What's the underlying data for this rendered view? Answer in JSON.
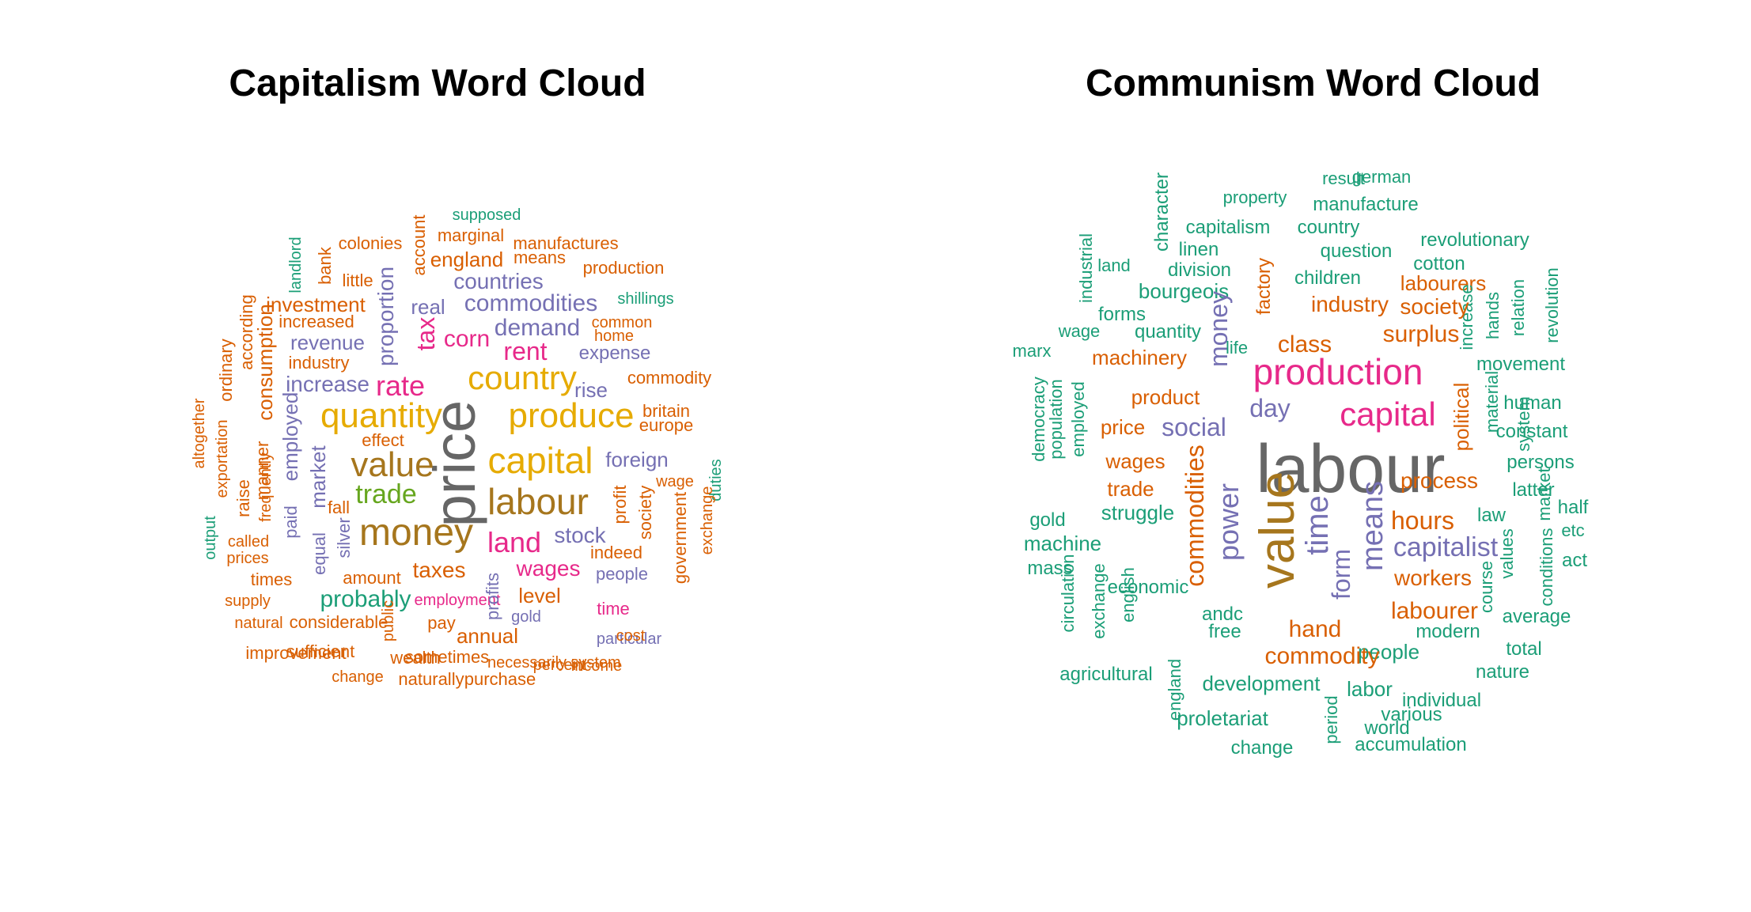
{
  "palette": {
    "teal": "#1b9e77",
    "orange": "#d95f02",
    "purple": "#7570b3",
    "pink": "#e7298a",
    "green": "#66a61e",
    "gold": "#e6ab02",
    "brown": "#a6761d",
    "gray": "#666666"
  },
  "panels": [
    {
      "title": "Capitalism Word Cloud",
      "words": [
        {
          "text": "supposed",
          "color": "teal"
        },
        {
          "text": "colonies",
          "color": "orange"
        },
        {
          "text": "marginal",
          "color": "orange"
        },
        {
          "text": "manufactures",
          "color": "orange"
        },
        {
          "text": "landlord",
          "color": "teal"
        },
        {
          "text": "bank",
          "color": "orange"
        },
        {
          "text": "account",
          "color": "orange"
        },
        {
          "text": "england",
          "color": "orange"
        },
        {
          "text": "means",
          "color": "orange"
        },
        {
          "text": "little",
          "color": "orange"
        },
        {
          "text": "countries",
          "color": "purple"
        },
        {
          "text": "production",
          "color": "orange"
        },
        {
          "text": "investment",
          "color": "orange"
        },
        {
          "text": "proportion",
          "color": "purple"
        },
        {
          "text": "real",
          "color": "purple"
        },
        {
          "text": "commodities",
          "color": "purple"
        },
        {
          "text": "shillings",
          "color": "teal"
        },
        {
          "text": "according",
          "color": "orange"
        },
        {
          "text": "increased",
          "color": "orange"
        },
        {
          "text": "tax",
          "color": "pink"
        },
        {
          "text": "demand",
          "color": "purple"
        },
        {
          "text": "common",
          "color": "orange"
        },
        {
          "text": "ordinary",
          "color": "orange"
        },
        {
          "text": "revenue",
          "color": "purple"
        },
        {
          "text": "corn",
          "color": "pink"
        },
        {
          "text": "home",
          "color": "orange"
        },
        {
          "text": "consumption",
          "color": "orange"
        },
        {
          "text": "rent",
          "color": "pink"
        },
        {
          "text": "expense",
          "color": "purple"
        },
        {
          "text": "industry",
          "color": "orange"
        },
        {
          "text": "country",
          "color": "gold"
        },
        {
          "text": "commodity",
          "color": "orange"
        },
        {
          "text": "increase",
          "color": "purple"
        },
        {
          "text": "rate",
          "color": "pink"
        },
        {
          "text": "rise",
          "color": "purple"
        },
        {
          "text": "employed",
          "color": "purple"
        },
        {
          "text": "quantity",
          "color": "gold"
        },
        {
          "text": "produce",
          "color": "gold"
        },
        {
          "text": "britain",
          "color": "orange"
        },
        {
          "text": "europe",
          "color": "orange"
        },
        {
          "text": "altogether",
          "color": "orange"
        },
        {
          "text": "exportation",
          "color": "orange"
        },
        {
          "text": "effect",
          "color": "orange"
        },
        {
          "text": "price",
          "color": "gray"
        },
        {
          "text": "market",
          "color": "purple"
        },
        {
          "text": "value",
          "color": "brown"
        },
        {
          "text": "capital",
          "color": "gold"
        },
        {
          "text": "foreign",
          "color": "purple"
        },
        {
          "text": "frequently",
          "color": "orange"
        },
        {
          "text": "raise",
          "color": "orange"
        },
        {
          "text": "manner",
          "color": "orange"
        },
        {
          "text": "trade",
          "color": "green"
        },
        {
          "text": "wage",
          "color": "orange"
        },
        {
          "text": "duties",
          "color": "teal"
        },
        {
          "text": "paid",
          "color": "purple"
        },
        {
          "text": "fall",
          "color": "orange"
        },
        {
          "text": "labour",
          "color": "brown"
        },
        {
          "text": "profit",
          "color": "orange"
        },
        {
          "text": "society",
          "color": "orange"
        },
        {
          "text": "government",
          "color": "orange"
        },
        {
          "text": "output",
          "color": "teal"
        },
        {
          "text": "equal",
          "color": "purple"
        },
        {
          "text": "silver",
          "color": "purple"
        },
        {
          "text": "money",
          "color": "brown"
        },
        {
          "text": "stock",
          "color": "purple"
        },
        {
          "text": "called",
          "color": "orange"
        },
        {
          "text": "land",
          "color": "pink"
        },
        {
          "text": "exchange",
          "color": "orange"
        },
        {
          "text": "prices",
          "color": "orange"
        },
        {
          "text": "indeed",
          "color": "orange"
        },
        {
          "text": "times",
          "color": "orange"
        },
        {
          "text": "amount",
          "color": "orange"
        },
        {
          "text": "taxes",
          "color": "orange"
        },
        {
          "text": "wages",
          "color": "pink"
        },
        {
          "text": "people",
          "color": "purple"
        },
        {
          "text": "supply",
          "color": "orange"
        },
        {
          "text": "probably",
          "color": "teal"
        },
        {
          "text": "employment",
          "color": "pink"
        },
        {
          "text": "level",
          "color": "orange"
        },
        {
          "text": "profits",
          "color": "purple"
        },
        {
          "text": "time",
          "color": "pink"
        },
        {
          "text": "natural",
          "color": "orange"
        },
        {
          "text": "considerable",
          "color": "orange"
        },
        {
          "text": "public",
          "color": "orange"
        },
        {
          "text": "pay",
          "color": "orange"
        },
        {
          "text": "gold",
          "color": "purple"
        },
        {
          "text": "annual",
          "color": "orange"
        },
        {
          "text": "particular",
          "color": "purple"
        },
        {
          "text": "sufficient",
          "color": "orange"
        },
        {
          "text": "sometimes",
          "color": "orange"
        },
        {
          "text": "necessarily",
          "color": "orange"
        },
        {
          "text": "cost",
          "color": "orange"
        },
        {
          "text": "improvement",
          "color": "orange"
        },
        {
          "text": "wealth",
          "color": "orange"
        },
        {
          "text": "percent",
          "color": "orange"
        },
        {
          "text": "income",
          "color": "orange"
        },
        {
          "text": "change",
          "color": "orange"
        },
        {
          "text": "naturally",
          "color": "orange"
        },
        {
          "text": "purchase",
          "color": "orange"
        },
        {
          "text": "system",
          "color": "orange"
        }
      ]
    },
    {
      "title": "Communism Word Cloud",
      "words": [
        {
          "text": "result",
          "color": "teal"
        },
        {
          "text": "german",
          "color": "teal"
        },
        {
          "text": "character",
          "color": "teal"
        },
        {
          "text": "property",
          "color": "teal"
        },
        {
          "text": "manufacture",
          "color": "teal"
        },
        {
          "text": "capitalism",
          "color": "teal"
        },
        {
          "text": "country",
          "color": "teal"
        },
        {
          "text": "industrial",
          "color": "teal"
        },
        {
          "text": "linen",
          "color": "teal"
        },
        {
          "text": "question",
          "color": "teal"
        },
        {
          "text": "revolutionary",
          "color": "teal"
        },
        {
          "text": "land",
          "color": "teal"
        },
        {
          "text": "division",
          "color": "teal"
        },
        {
          "text": "factory",
          "color": "orange"
        },
        {
          "text": "cotton",
          "color": "teal"
        },
        {
          "text": "children",
          "color": "teal"
        },
        {
          "text": "labourers",
          "color": "orange"
        },
        {
          "text": "revolution",
          "color": "teal"
        },
        {
          "text": "relation",
          "color": "teal"
        },
        {
          "text": "bourgeois",
          "color": "teal"
        },
        {
          "text": "hands",
          "color": "teal"
        },
        {
          "text": "increase",
          "color": "teal"
        },
        {
          "text": "industry",
          "color": "orange"
        },
        {
          "text": "society",
          "color": "orange"
        },
        {
          "text": "forms",
          "color": "teal"
        },
        {
          "text": "wage",
          "color": "teal"
        },
        {
          "text": "quantity",
          "color": "teal"
        },
        {
          "text": "money",
          "color": "purple"
        },
        {
          "text": "surplus",
          "color": "orange"
        },
        {
          "text": "life",
          "color": "teal"
        },
        {
          "text": "class",
          "color": "orange"
        },
        {
          "text": "marx",
          "color": "teal"
        },
        {
          "text": "machinery",
          "color": "orange"
        },
        {
          "text": "movement",
          "color": "teal"
        },
        {
          "text": "production",
          "color": "pink"
        },
        {
          "text": "democracy",
          "color": "teal"
        },
        {
          "text": "product",
          "color": "orange"
        },
        {
          "text": "political",
          "color": "orange"
        },
        {
          "text": "material",
          "color": "teal"
        },
        {
          "text": "human",
          "color": "teal"
        },
        {
          "text": "population",
          "color": "teal"
        },
        {
          "text": "employed",
          "color": "teal"
        },
        {
          "text": "day",
          "color": "purple"
        },
        {
          "text": "capital",
          "color": "pink"
        },
        {
          "text": "system",
          "color": "teal"
        },
        {
          "text": "constant",
          "color": "teal"
        },
        {
          "text": "price",
          "color": "orange"
        },
        {
          "text": "social",
          "color": "purple"
        },
        {
          "text": "persons",
          "color": "teal"
        },
        {
          "text": "wages",
          "color": "orange"
        },
        {
          "text": "labour",
          "color": "gray"
        },
        {
          "text": "process",
          "color": "orange"
        },
        {
          "text": "latter",
          "color": "teal"
        },
        {
          "text": "trade",
          "color": "orange"
        },
        {
          "text": "market",
          "color": "teal"
        },
        {
          "text": "half",
          "color": "teal"
        },
        {
          "text": "struggle",
          "color": "teal"
        },
        {
          "text": "commodities",
          "color": "orange"
        },
        {
          "text": "law",
          "color": "teal"
        },
        {
          "text": "gold",
          "color": "teal"
        },
        {
          "text": "hours",
          "color": "orange"
        },
        {
          "text": "etc",
          "color": "teal"
        },
        {
          "text": "power",
          "color": "purple"
        },
        {
          "text": "value",
          "color": "brown"
        },
        {
          "text": "time",
          "color": "purple"
        },
        {
          "text": "means",
          "color": "purple"
        },
        {
          "text": "capitalist",
          "color": "purple"
        },
        {
          "text": "values",
          "color": "teal"
        },
        {
          "text": "machine",
          "color": "teal"
        },
        {
          "text": "act",
          "color": "teal"
        },
        {
          "text": "conditions",
          "color": "teal"
        },
        {
          "text": "mass",
          "color": "teal"
        },
        {
          "text": "form",
          "color": "purple"
        },
        {
          "text": "workers",
          "color": "orange"
        },
        {
          "text": "course",
          "color": "teal"
        },
        {
          "text": "economic",
          "color": "teal"
        },
        {
          "text": "english",
          "color": "teal"
        },
        {
          "text": "average",
          "color": "teal"
        },
        {
          "text": "exchange",
          "color": "teal"
        },
        {
          "text": "circulation",
          "color": "teal"
        },
        {
          "text": "andc",
          "color": "teal"
        },
        {
          "text": "labourer",
          "color": "orange"
        },
        {
          "text": "free",
          "color": "teal"
        },
        {
          "text": "hand",
          "color": "orange"
        },
        {
          "text": "modern",
          "color": "teal"
        },
        {
          "text": "people",
          "color": "teal"
        },
        {
          "text": "total",
          "color": "teal"
        },
        {
          "text": "commodity",
          "color": "orange"
        },
        {
          "text": "agricultural",
          "color": "teal"
        },
        {
          "text": "nature",
          "color": "teal"
        },
        {
          "text": "development",
          "color": "teal"
        },
        {
          "text": "england",
          "color": "teal"
        },
        {
          "text": "labor",
          "color": "teal"
        },
        {
          "text": "individual",
          "color": "teal"
        },
        {
          "text": "various",
          "color": "teal"
        },
        {
          "text": "proletariat",
          "color": "teal"
        },
        {
          "text": "period",
          "color": "teal"
        },
        {
          "text": "world",
          "color": "teal"
        },
        {
          "text": "change",
          "color": "teal"
        },
        {
          "text": "accumulation",
          "color": "teal"
        }
      ]
    }
  ]
}
